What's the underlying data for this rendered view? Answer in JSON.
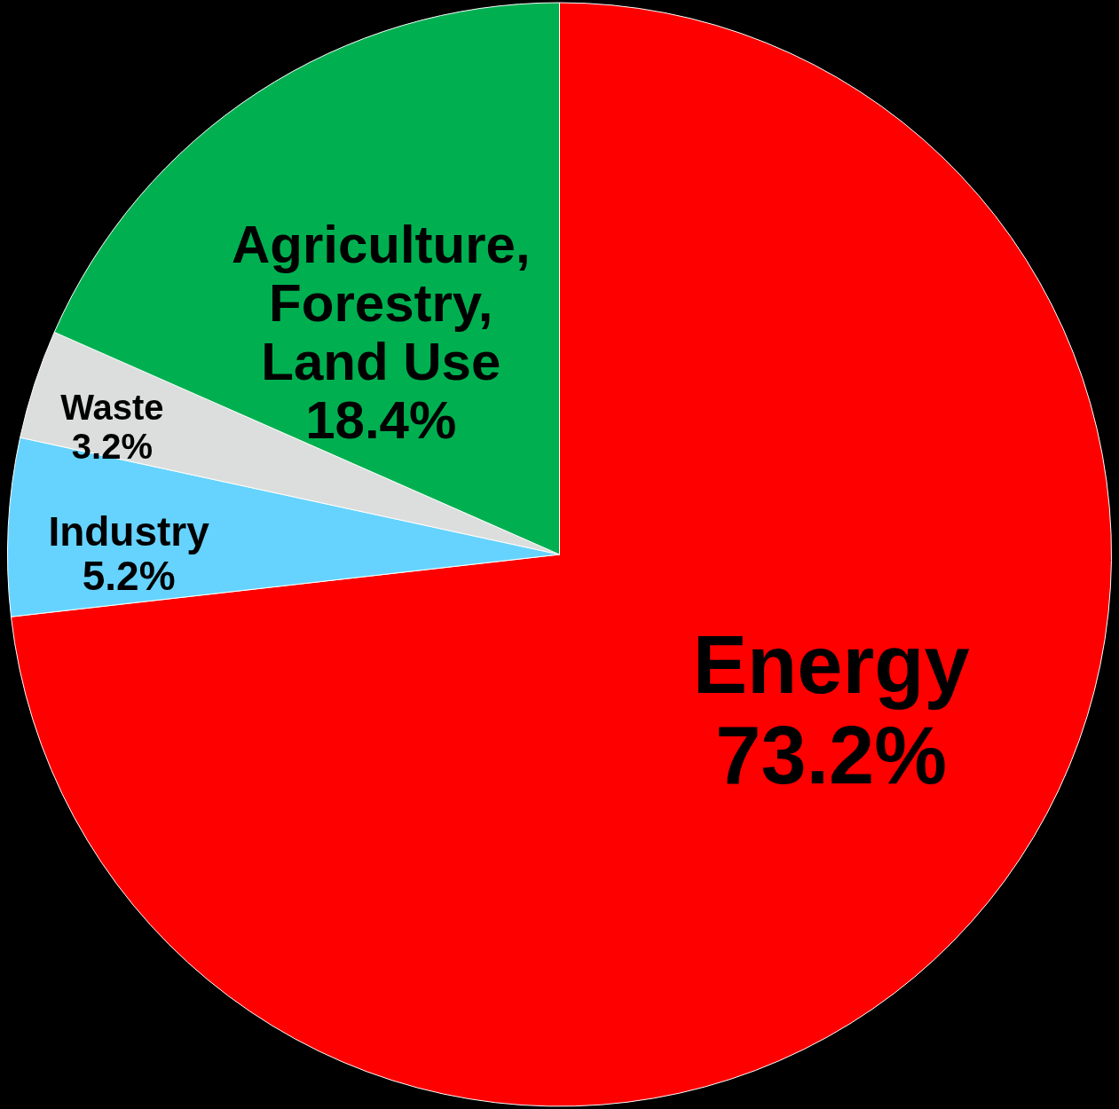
{
  "chart_data": {
    "type": "pie",
    "categories": [
      "Energy",
      "Industry",
      "Waste",
      "Agriculture, Forestry, Land Use"
    ],
    "values": [
      73.2,
      5.2,
      3.2,
      18.4
    ],
    "value_labels": [
      "73.2%",
      "5.2%",
      "3.2%",
      "18.4%"
    ],
    "colors": [
      "#ff0000",
      "#66d3ff",
      "#dcdedd",
      "#00b050"
    ]
  }
}
